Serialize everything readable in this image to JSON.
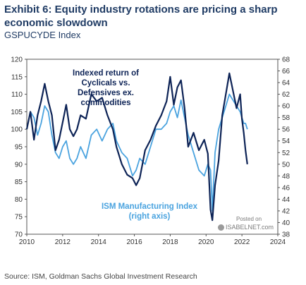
{
  "title": "Exhibit 6: Equity industry rotations are pricing a sharp economic slowdown",
  "subtitle": "GSPUCYDE Index",
  "source": "Source: ISM, Goldman Sachs Global Investment Research",
  "watermark": {
    "posted": "Posted on",
    "name": "ISABELNET.com"
  },
  "colors": {
    "cyclicals": "#0d2356",
    "ism": "#4aa3df",
    "text": "#1f3b64"
  },
  "chart_data": {
    "type": "line",
    "xlim": [
      2010,
      2024
    ],
    "x_ticks": [
      2010,
      2012,
      2014,
      2016,
      2018,
      2020,
      2022,
      2024
    ],
    "y_left": {
      "lim": [
        70,
        120
      ],
      "ticks": [
        70,
        75,
        80,
        85,
        90,
        95,
        100,
        105,
        110,
        115,
        120
      ]
    },
    "y_right": {
      "lim": [
        38,
        68
      ],
      "ticks": [
        38,
        40,
        42,
        44,
        46,
        48,
        50,
        52,
        54,
        56,
        58,
        60,
        62,
        64,
        66,
        68
      ]
    },
    "annotations": [
      {
        "lines": [
          "Indexed return of",
          "Cyclicals vs.",
          "Defensives ex.",
          "commodities"
        ],
        "color": "#0d2356"
      },
      {
        "lines": [
          "ISM Manufacturing Index",
          "(right axis)"
        ],
        "color": "#4aa3df"
      }
    ],
    "series": [
      {
        "axis": "left",
        "color": "#0d2356",
        "x": [
          2010.0,
          2010.2,
          2010.4,
          2010.6,
          2010.8,
          2011.0,
          2011.2,
          2011.4,
          2011.6,
          2011.8,
          2012.0,
          2012.2,
          2012.4,
          2012.6,
          2012.8,
          2013.0,
          2013.3,
          2013.6,
          2013.9,
          2014.2,
          2014.5,
          2014.8,
          2015.0,
          2015.3,
          2015.6,
          2015.9,
          2016.1,
          2016.3,
          2016.6,
          2016.9,
          2017.2,
          2017.5,
          2017.8,
          2018.0,
          2018.2,
          2018.4,
          2018.6,
          2018.8,
          2019.0,
          2019.3,
          2019.6,
          2019.9,
          2020.1,
          2020.25,
          2020.35,
          2020.5,
          2020.7,
          2020.9,
          2021.1,
          2021.3,
          2021.5,
          2021.7,
          2021.9,
          2022.0,
          2022.1,
          2022.2,
          2022.3
        ],
        "y": [
          100,
          105,
          97,
          104,
          108,
          113,
          108,
          104,
          94,
          97,
          102,
          107,
          100,
          98,
          100,
          104,
          103,
          110,
          108,
          109,
          104,
          100,
          95,
          90,
          87,
          86,
          84,
          86,
          94,
          97,
          101,
          104,
          108,
          115,
          107,
          112,
          114,
          106,
          95,
          99,
          94,
          97,
          93,
          77,
          74,
          84,
          91,
          104,
          110,
          116,
          111,
          106,
          110,
          103,
          99,
          94,
          90
        ]
      },
      {
        "axis": "right",
        "color": "#4aa3df",
        "x": [
          2010.0,
          2010.2,
          2010.4,
          2010.6,
          2010.8,
          2011.0,
          2011.2,
          2011.4,
          2011.6,
          2011.8,
          2012.0,
          2012.2,
          2012.4,
          2012.6,
          2012.8,
          2013.0,
          2013.3,
          2013.6,
          2013.9,
          2014.2,
          2014.5,
          2014.8,
          2015.0,
          2015.3,
          2015.6,
          2015.9,
          2016.1,
          2016.3,
          2016.6,
          2016.9,
          2017.2,
          2017.5,
          2017.8,
          2018.0,
          2018.2,
          2018.4,
          2018.6,
          2018.8,
          2019.0,
          2019.3,
          2019.6,
          2019.9,
          2020.1,
          2020.25,
          2020.35,
          2020.5,
          2020.7,
          2020.9,
          2021.1,
          2021.3,
          2021.5,
          2021.7,
          2021.9,
          2022.0,
          2022.1,
          2022.2,
          2022.3
        ],
        "y": [
          56,
          59,
          58,
          55,
          57,
          60,
          59,
          55,
          52,
          51,
          53,
          54,
          51,
          50,
          51,
          53,
          51,
          55,
          56,
          54,
          56,
          57,
          54,
          52,
          51,
          48,
          49,
          51,
          50,
          53,
          56,
          56,
          57,
          59,
          60,
          58,
          61,
          58,
          55,
          52,
          49,
          48,
          50,
          49,
          42,
          52,
          56,
          58,
          60,
          62,
          61,
          60,
          59,
          58,
          57,
          57,
          56
        ]
      }
    ]
  }
}
